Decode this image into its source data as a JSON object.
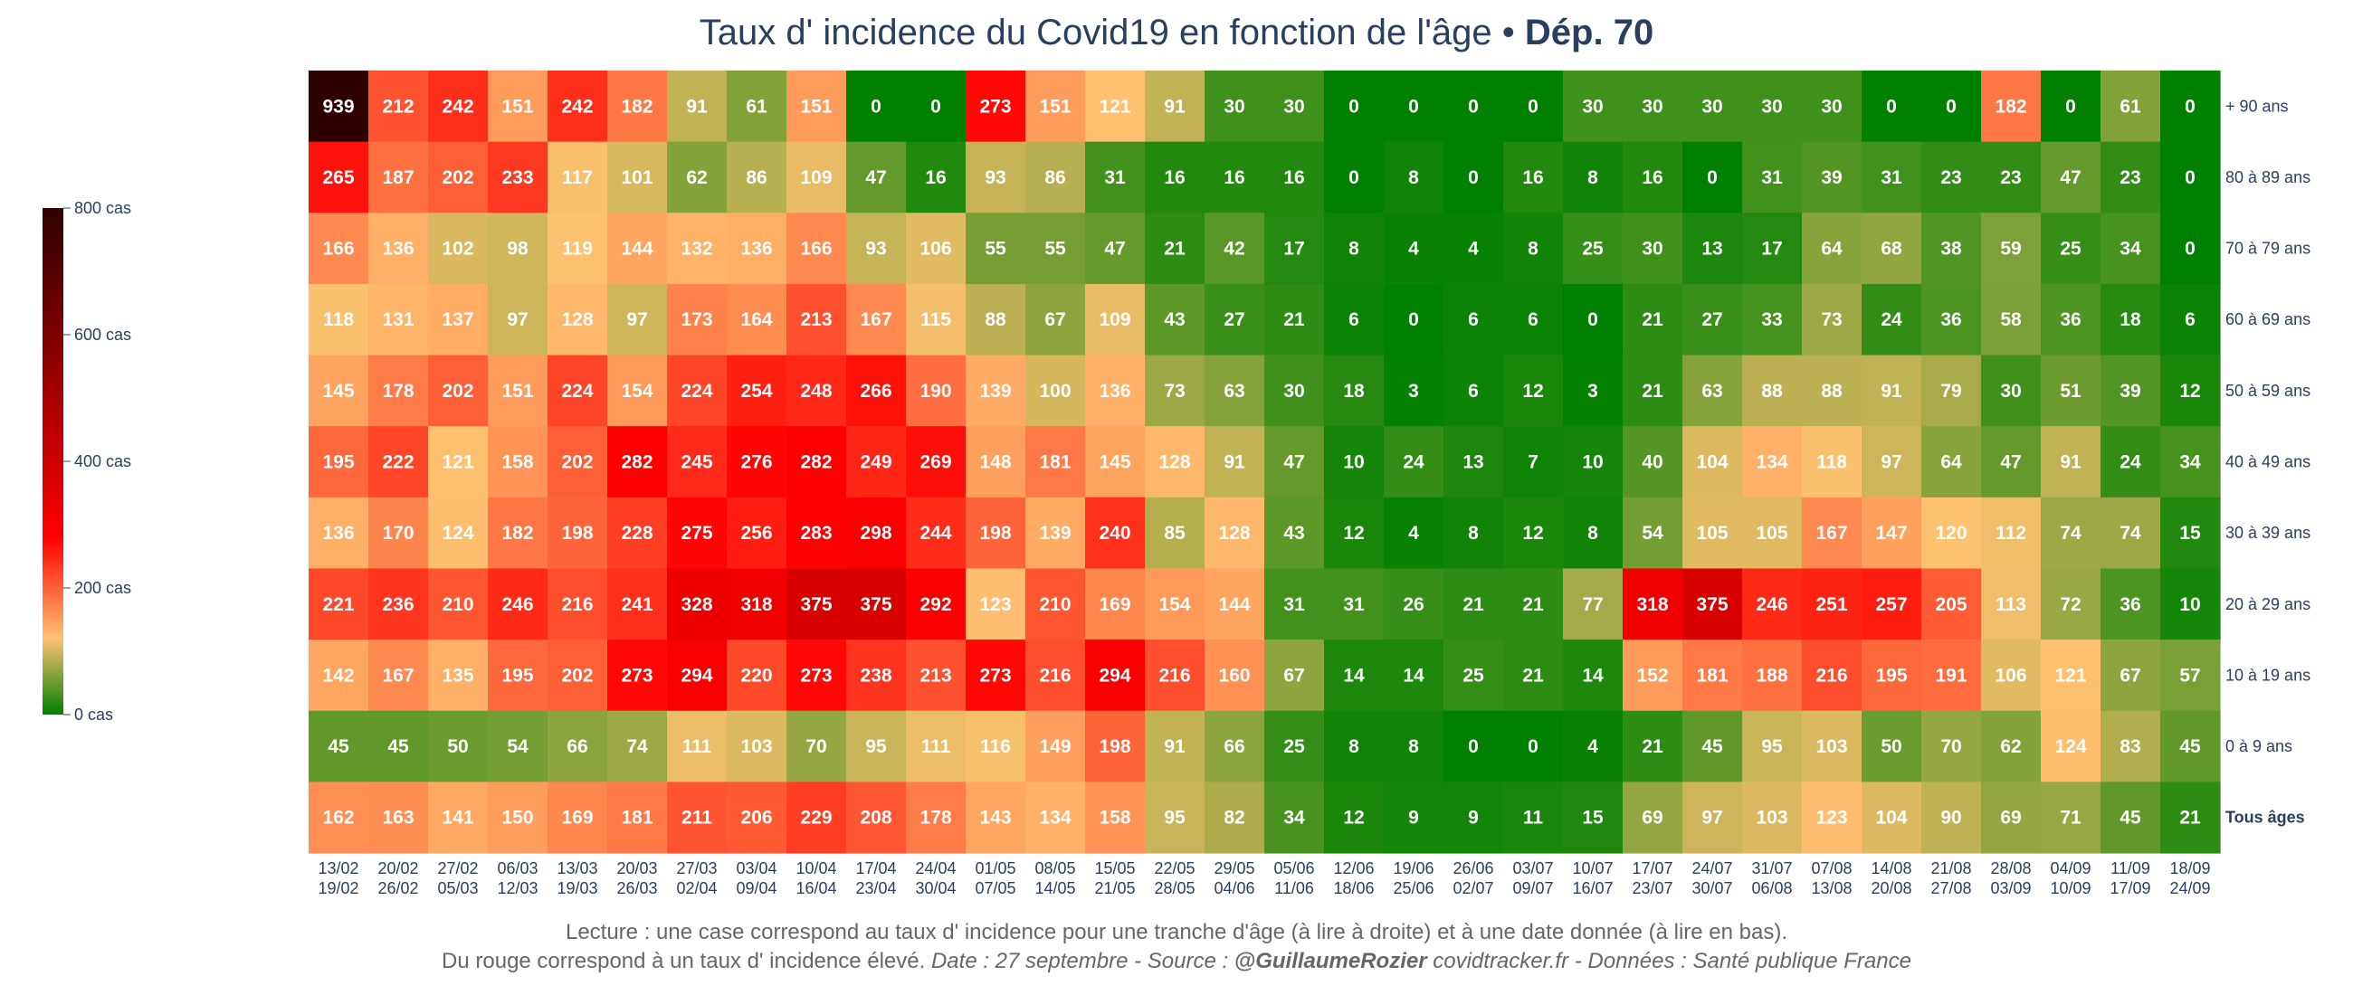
{
  "title": {
    "main": "Taux d' incidence du Covid19 en fonction de l'âge",
    "separator": " • ",
    "highlight": "Dép. 70"
  },
  "colorbar": {
    "tick_labels": [
      "800 cas",
      "600 cas",
      "400 cas",
      "200 cas",
      "0 cas"
    ]
  },
  "footer": {
    "line1": "Lecture : une case correspond au taux d' incidence pour une tranche d'âge (à lire à droite) et à une date donnée (à lire en bas).",
    "line2_normal": "Du rouge correspond à un taux d' incidence élevé.  ",
    "line2_italic": "Date : 27 septembre - Source : ",
    "line2_author": "@GuillaumeRozier",
    "line2_rest": " covidtracker.fr - Données : Santé publique France"
  },
  "colors": {
    "scale": [
      "#008000",
      "#FFC271",
      "#FF0000",
      "#2F0000"
    ],
    "text": "#2a3f5f"
  },
  "chart_data": {
    "type": "heatmap",
    "x_labels": [
      [
        "13/02",
        "19/02"
      ],
      [
        "20/02",
        "26/02"
      ],
      [
        "27/02",
        "05/03"
      ],
      [
        "06/03",
        "12/03"
      ],
      [
        "13/03",
        "19/03"
      ],
      [
        "20/03",
        "26/03"
      ],
      [
        "27/03",
        "02/04"
      ],
      [
        "03/04",
        "09/04"
      ],
      [
        "10/04",
        "16/04"
      ],
      [
        "17/04",
        "23/04"
      ],
      [
        "24/04",
        "30/04"
      ],
      [
        "01/05",
        "07/05"
      ],
      [
        "08/05",
        "14/05"
      ],
      [
        "15/05",
        "21/05"
      ],
      [
        "22/05",
        "28/05"
      ],
      [
        "29/05",
        "04/06"
      ],
      [
        "05/06",
        "11/06"
      ],
      [
        "12/06",
        "18/06"
      ],
      [
        "19/06",
        "25/06"
      ],
      [
        "26/06",
        "02/07"
      ],
      [
        "03/07",
        "09/07"
      ],
      [
        "10/07",
        "16/07"
      ],
      [
        "17/07",
        "23/07"
      ],
      [
        "24/07",
        "30/07"
      ],
      [
        "31/07",
        "06/08"
      ],
      [
        "07/08",
        "13/08"
      ],
      [
        "14/08",
        "20/08"
      ],
      [
        "21/08",
        "27/08"
      ],
      [
        "28/08",
        "03/09"
      ],
      [
        "04/09",
        "10/09"
      ],
      [
        "11/09",
        "17/09"
      ],
      [
        "18/09",
        "24/09"
      ]
    ],
    "y_labels": [
      "+ 90 ans",
      "80 à 89 ans",
      "70 à 79 ans",
      "60 à 69 ans",
      "50 à 59 ans",
      "40 à 49 ans",
      "30 à 39 ans",
      "20 à 29 ans",
      "10 à 19 ans",
      "0 à 9 ans",
      "Tous âges"
    ],
    "z": [
      [
        939,
        212,
        242,
        151,
        242,
        182,
        91,
        61,
        151,
        0,
        0,
        273,
        151,
        121,
        91,
        30,
        30,
        0,
        0,
        0,
        0,
        30,
        30,
        30,
        30,
        30,
        0,
        0,
        182,
        0,
        61,
        0
      ],
      [
        265,
        187,
        202,
        233,
        117,
        101,
        62,
        86,
        109,
        47,
        16,
        93,
        86,
        31,
        16,
        16,
        16,
        0,
        8,
        0,
        16,
        8,
        16,
        0,
        31,
        39,
        31,
        23,
        23,
        47,
        23,
        0
      ],
      [
        166,
        136,
        102,
        98,
        119,
        144,
        132,
        136,
        166,
        93,
        106,
        55,
        55,
        47,
        21,
        42,
        17,
        8,
        4,
        4,
        8,
        25,
        30,
        13,
        17,
        64,
        68,
        38,
        59,
        25,
        34,
        0
      ],
      [
        118,
        131,
        137,
        97,
        128,
        97,
        173,
        164,
        213,
        167,
        115,
        88,
        67,
        109,
        43,
        27,
        21,
        6,
        0,
        6,
        6,
        0,
        21,
        27,
        33,
        73,
        24,
        36,
        58,
        36,
        18,
        6
      ],
      [
        145,
        178,
        202,
        151,
        224,
        154,
        224,
        254,
        248,
        266,
        190,
        139,
        100,
        136,
        73,
        63,
        30,
        18,
        3,
        6,
        12,
        3,
        21,
        63,
        88,
        88,
        91,
        79,
        30,
        51,
        39,
        12
      ],
      [
        195,
        222,
        121,
        158,
        202,
        282,
        245,
        276,
        282,
        249,
        269,
        148,
        181,
        145,
        128,
        91,
        47,
        10,
        24,
        13,
        7,
        10,
        40,
        104,
        134,
        118,
        97,
        64,
        47,
        91,
        24,
        34
      ],
      [
        136,
        170,
        124,
        182,
        198,
        228,
        275,
        256,
        283,
        298,
        244,
        198,
        139,
        240,
        85,
        128,
        43,
        12,
        4,
        8,
        12,
        8,
        54,
        105,
        105,
        167,
        147,
        120,
        112,
        74,
        74,
        15
      ],
      [
        221,
        236,
        210,
        246,
        216,
        241,
        328,
        318,
        375,
        375,
        292,
        123,
        210,
        169,
        154,
        144,
        31,
        31,
        26,
        21,
        21,
        77,
        318,
        375,
        246,
        251,
        257,
        205,
        113,
        72,
        36,
        10
      ],
      [
        142,
        167,
        135,
        195,
        202,
        273,
        294,
        220,
        273,
        238,
        213,
        273,
        216,
        294,
        216,
        160,
        67,
        14,
        14,
        25,
        21,
        14,
        152,
        181,
        188,
        216,
        195,
        191,
        106,
        121,
        67,
        57
      ],
      [
        45,
        45,
        50,
        54,
        66,
        74,
        111,
        103,
        70,
        95,
        111,
        116,
        149,
        198,
        91,
        66,
        25,
        8,
        8,
        0,
        0,
        4,
        21,
        45,
        95,
        103,
        50,
        70,
        62,
        124,
        83,
        45
      ],
      [
        162,
        163,
        141,
        150,
        169,
        181,
        211,
        206,
        229,
        208,
        178,
        143,
        134,
        158,
        95,
        82,
        34,
        12,
        9,
        9,
        11,
        15,
        69,
        97,
        103,
        123,
        104,
        90,
        69,
        71,
        45,
        21
      ]
    ],
    "zmin": 0,
    "zmax": 800,
    "colorscale_stops": [
      0,
      0.15,
      0.35,
      1
    ]
  }
}
